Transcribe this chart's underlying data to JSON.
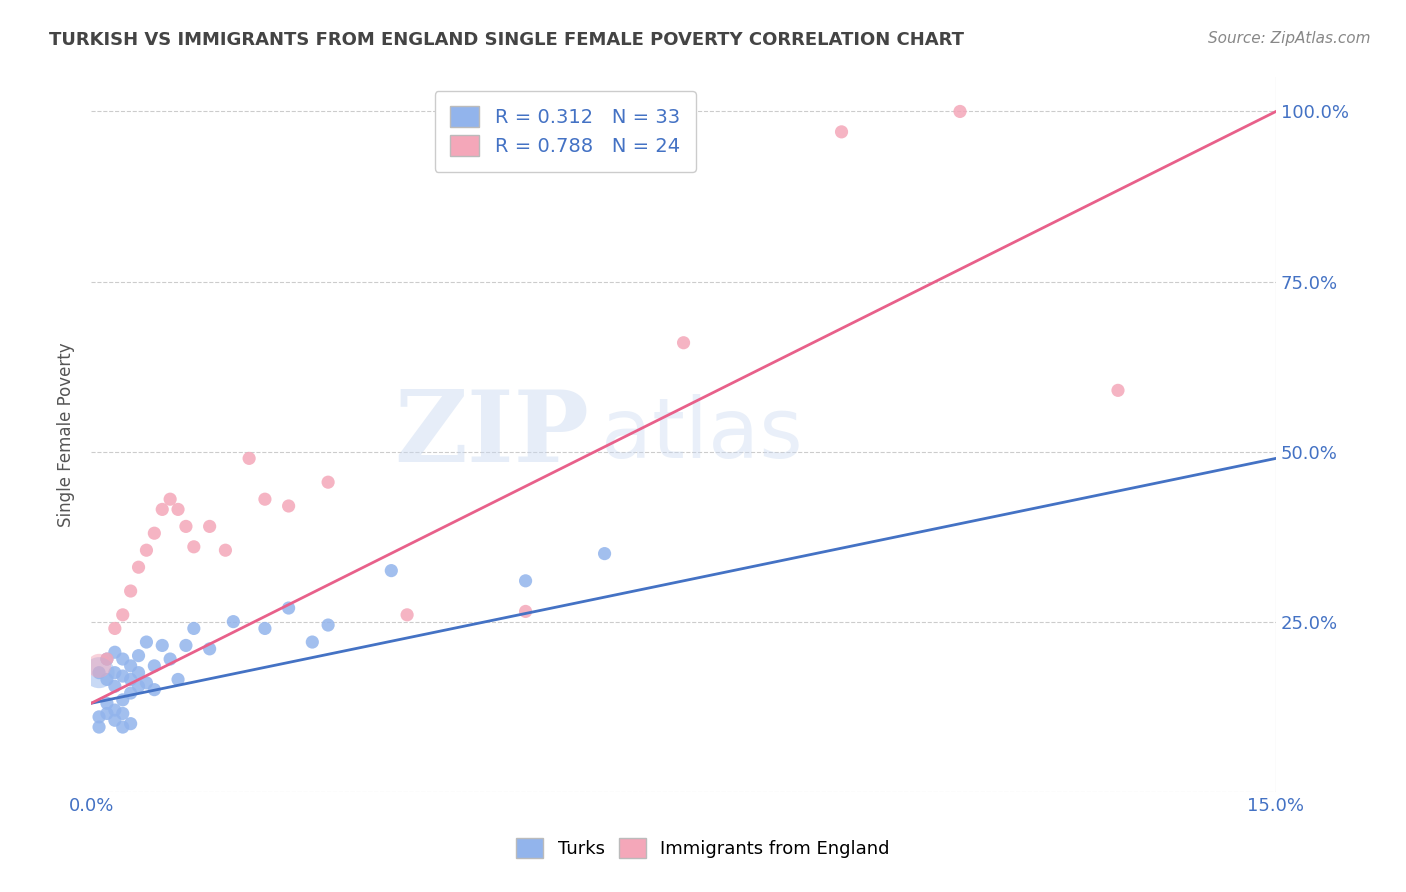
{
  "title": "TURKISH VS IMMIGRANTS FROM ENGLAND SINGLE FEMALE POVERTY CORRELATION CHART",
  "source": "Source: ZipAtlas.com",
  "ylabel_label": "Single Female Poverty",
  "x_tick_positions": [
    0.0,
    0.03,
    0.06,
    0.09,
    0.12,
    0.15
  ],
  "x_tick_labels": [
    "0.0%",
    "",
    "",
    "",
    "",
    "15.0%"
  ],
  "y_tick_positions": [
    0.0,
    0.25,
    0.5,
    0.75,
    1.0
  ],
  "y_tick_labels": [
    "",
    "25.0%",
    "50.0%",
    "75.0%",
    "100.0%"
  ],
  "xlim": [
    0.0,
    0.15
  ],
  "ylim": [
    0.0,
    1.05
  ],
  "blue_color": "#92B4EC",
  "pink_color": "#F4A7B9",
  "blue_line_color": "#4472C4",
  "pink_line_color": "#E8608A",
  "R_blue": 0.312,
  "N_blue": 33,
  "R_pink": 0.788,
  "N_pink": 24,
  "turks_x": [
    0.001,
    0.002,
    0.002,
    0.003,
    0.003,
    0.003,
    0.004,
    0.004,
    0.004,
    0.005,
    0.005,
    0.005,
    0.006,
    0.006,
    0.006,
    0.007,
    0.007,
    0.008,
    0.008,
    0.009,
    0.01,
    0.011,
    0.012,
    0.013,
    0.015,
    0.018,
    0.022,
    0.025,
    0.028,
    0.03,
    0.038,
    0.055,
    0.065
  ],
  "turks_y": [
    0.175,
    0.165,
    0.195,
    0.155,
    0.175,
    0.205,
    0.135,
    0.17,
    0.195,
    0.145,
    0.165,
    0.185,
    0.155,
    0.175,
    0.2,
    0.16,
    0.22,
    0.15,
    0.185,
    0.215,
    0.195,
    0.165,
    0.215,
    0.24,
    0.21,
    0.25,
    0.24,
    0.27,
    0.22,
    0.245,
    0.325,
    0.31,
    0.35
  ],
  "england_x": [
    0.002,
    0.003,
    0.004,
    0.005,
    0.006,
    0.007,
    0.008,
    0.009,
    0.01,
    0.011,
    0.012,
    0.013,
    0.015,
    0.017,
    0.02,
    0.022,
    0.025,
    0.03,
    0.04,
    0.055,
    0.075,
    0.095,
    0.11,
    0.13
  ],
  "england_y": [
    0.195,
    0.24,
    0.26,
    0.295,
    0.33,
    0.355,
    0.38,
    0.415,
    0.43,
    0.415,
    0.39,
    0.36,
    0.39,
    0.355,
    0.49,
    0.43,
    0.42,
    0.455,
    0.26,
    0.265,
    0.66,
    0.97,
    1.0,
    0.59
  ],
  "turks_low_x": [
    0.001,
    0.001,
    0.002,
    0.002,
    0.003,
    0.003,
    0.004,
    0.004,
    0.005
  ],
  "turks_low_y": [
    0.095,
    0.11,
    0.115,
    0.13,
    0.105,
    0.12,
    0.095,
    0.115,
    0.1
  ],
  "background_color": "#FFFFFF",
  "grid_color": "#CCCCCC",
  "tick_color": "#4472C4",
  "legend_r_n_color": "#4472C4",
  "title_color": "#444444",
  "source_color": "#888888"
}
